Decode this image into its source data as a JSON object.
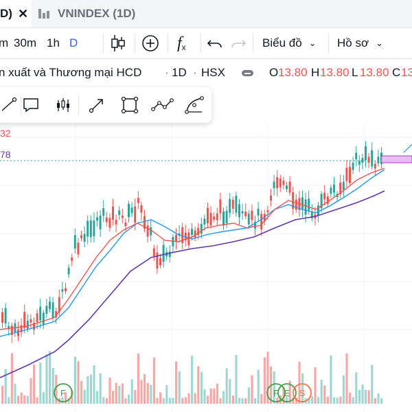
{
  "tabs": {
    "active": {
      "label": "D)",
      "close": "✕"
    },
    "inactive": {
      "label": "VNINDEX (1D)"
    }
  },
  "toolbar": {
    "intervals": [
      "m",
      "30m",
      "1h",
      "D"
    ],
    "active_interval": "D",
    "fx_icon": "f",
    "fx_sub": "x",
    "chart_menu": "Biểu đồ",
    "profile_menu": "Hồ sơ",
    "chevron": "⌄"
  },
  "legend": {
    "symbol_name": "n xuất và Thương mại HCD",
    "interval": "1D",
    "exchange": "HSX",
    "open_label": "O",
    "open_value": "13.80",
    "high_label": "H",
    "high_value": "13.80",
    "low_label": "L",
    "low_value": "13.80",
    "close_label": "C",
    "close_value": "13"
  },
  "side_values": {
    "top": "32",
    "second": "78"
  },
  "icons": [
    "line-tool-icon",
    "comment-icon",
    "bars-icon",
    "arrow-tool-icon",
    "rectangle-icon",
    "path-icon",
    "curve-icon"
  ],
  "markers": [
    "F",
    "F",
    "E",
    "S"
  ],
  "colors": {
    "up": "#26a69a",
    "down": "#ef5350",
    "ma_short": "#ef5350",
    "ma_mid": "#2196f3",
    "ma_long": "#5e35b1",
    "accent": "#2962ff"
  }
}
